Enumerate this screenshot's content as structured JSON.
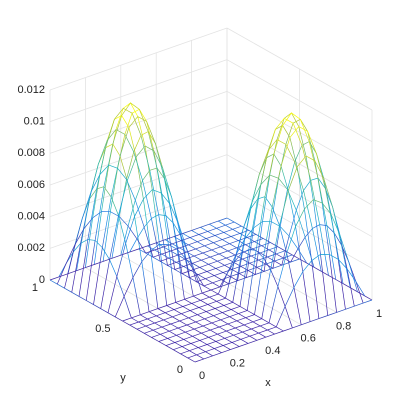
{
  "chart_data": {
    "type": "mesh",
    "xlabel": "x",
    "ylabel": "y",
    "x": [
      0,
      0.05,
      0.1,
      0.15,
      0.2,
      0.25,
      0.3,
      0.35,
      0.4,
      0.45,
      0.5,
      0.55,
      0.6,
      0.65,
      0.7,
      0.75,
      0.8,
      0.85,
      0.9,
      0.95,
      1
    ],
    "y": [
      0,
      0.05,
      0.1,
      0.15,
      0.2,
      0.25,
      0.3,
      0.35,
      0.4,
      0.45,
      0.5,
      0.55,
      0.6,
      0.65,
      0.7,
      0.75,
      0.8,
      0.85,
      0.9,
      0.95,
      1
    ],
    "z": [
      [
        0,
        0,
        0,
        0,
        0,
        0,
        0,
        0,
        0,
        0,
        0,
        0,
        0,
        0,
        0,
        0,
        0,
        0,
        0,
        0,
        0
      ],
      [
        0,
        0,
        0,
        0,
        0,
        0,
        0,
        0,
        0,
        0,
        0,
        0.0011,
        0.0021,
        0.0029,
        0.0034,
        0.0036,
        0.0034,
        0.0029,
        0.0021,
        0.0011,
        0
      ],
      [
        0,
        0,
        0,
        0,
        0,
        0,
        0,
        0,
        0,
        0,
        0,
        0.0021,
        0.004,
        0.0055,
        0.0064,
        0.0068,
        0.0064,
        0.0055,
        0.004,
        0.0021,
        0
      ],
      [
        0,
        0,
        0,
        0,
        0,
        0,
        0,
        0,
        0,
        0,
        0,
        0.0029,
        0.0055,
        0.0075,
        0.0088,
        0.0093,
        0.0088,
        0.0075,
        0.0055,
        0.0029,
        0
      ],
      [
        0,
        0,
        0,
        0,
        0,
        0,
        0,
        0,
        0,
        0,
        0,
        0.0034,
        0.0064,
        0.0088,
        0.0104,
        0.0109,
        0.0104,
        0.0088,
        0.0064,
        0.0034,
        0
      ],
      [
        0,
        0,
        0,
        0,
        0,
        0,
        0,
        0,
        0,
        0,
        0,
        0.0036,
        0.0068,
        0.0093,
        0.0109,
        0.0115,
        0.0109,
        0.0093,
        0.0068,
        0.0036,
        0
      ],
      [
        0,
        0,
        0,
        0,
        0,
        0,
        0,
        0,
        0,
        0,
        0,
        0.0034,
        0.0064,
        0.0088,
        0.0104,
        0.0109,
        0.0104,
        0.0088,
        0.0064,
        0.0034,
        0
      ],
      [
        0,
        0,
        0,
        0,
        0,
        0,
        0,
        0,
        0,
        0,
        0,
        0.0029,
        0.0055,
        0.0075,
        0.0088,
        0.0093,
        0.0088,
        0.0075,
        0.0055,
        0.0029,
        0
      ],
      [
        0,
        0,
        0,
        0,
        0,
        0,
        0,
        0,
        0,
        0,
        0,
        0.0021,
        0.004,
        0.0055,
        0.0064,
        0.0068,
        0.0064,
        0.0055,
        0.004,
        0.0021,
        0
      ],
      [
        0,
        0,
        0,
        0,
        0,
        0,
        0,
        0,
        0,
        0,
        0,
        0.0011,
        0.0021,
        0.0029,
        0.0034,
        0.0036,
        0.0034,
        0.0029,
        0.0021,
        0.0011,
        0
      ],
      [
        0,
        0,
        0,
        0,
        0,
        0,
        0,
        0,
        0,
        0,
        0,
        0,
        0,
        0,
        0,
        0,
        0,
        0,
        0,
        0,
        0
      ],
      [
        0,
        0.0011,
        0.0021,
        0.0029,
        0.0034,
        0.0036,
        0.0034,
        0.0029,
        0.0021,
        0.0011,
        0,
        0,
        0,
        0,
        0,
        0,
        0,
        0,
        0,
        0,
        0
      ],
      [
        0,
        0.0021,
        0.004,
        0.0055,
        0.0064,
        0.0068,
        0.0064,
        0.0055,
        0.004,
        0.0021,
        0,
        0,
        0,
        0,
        0,
        0,
        0,
        0,
        0,
        0,
        0
      ],
      [
        0,
        0.0029,
        0.0055,
        0.0075,
        0.0088,
        0.0093,
        0.0088,
        0.0075,
        0.0055,
        0.0029,
        0,
        0,
        0,
        0,
        0,
        0,
        0,
        0,
        0,
        0,
        0
      ],
      [
        0,
        0.0034,
        0.0064,
        0.0088,
        0.0104,
        0.0109,
        0.0104,
        0.0088,
        0.0064,
        0.0034,
        0,
        0,
        0,
        0,
        0,
        0,
        0,
        0,
        0,
        0,
        0
      ],
      [
        0,
        0.0036,
        0.0068,
        0.0093,
        0.0109,
        0.0115,
        0.0109,
        0.0093,
        0.0068,
        0.0036,
        0,
        0,
        0,
        0,
        0,
        0,
        0,
        0,
        0,
        0,
        0
      ],
      [
        0,
        0.0034,
        0.0064,
        0.0088,
        0.0104,
        0.0109,
        0.0104,
        0.0088,
        0.0064,
        0.0034,
        0,
        0,
        0,
        0,
        0,
        0,
        0,
        0,
        0,
        0,
        0
      ],
      [
        0,
        0.0029,
        0.0055,
        0.0075,
        0.0088,
        0.0093,
        0.0088,
        0.0075,
        0.0055,
        0.0029,
        0,
        0,
        0,
        0,
        0,
        0,
        0,
        0,
        0,
        0,
        0
      ],
      [
        0,
        0.0021,
        0.004,
        0.0055,
        0.0064,
        0.0068,
        0.0064,
        0.0055,
        0.004,
        0.0021,
        0,
        0,
        0,
        0,
        0,
        0,
        0,
        0,
        0,
        0,
        0
      ],
      [
        0,
        0.0011,
        0.0021,
        0.0029,
        0.0034,
        0.0036,
        0.0034,
        0.0029,
        0.0021,
        0.0011,
        0,
        0,
        0,
        0,
        0,
        0,
        0,
        0,
        0,
        0,
        0
      ],
      [
        0,
        0,
        0,
        0,
        0,
        0,
        0,
        0,
        0,
        0,
        0,
        0,
        0,
        0,
        0,
        0,
        0,
        0,
        0,
        0,
        0
      ]
    ],
    "xlim": [
      0,
      1
    ],
    "xticks": [
      0,
      0.2,
      0.4,
      0.6,
      0.8,
      1
    ],
    "ylim": [
      0,
      1
    ],
    "yticks": [
      0,
      0.5,
      1
    ],
    "zlim": [
      0,
      0.012
    ],
    "zticks": [
      0,
      0.002,
      0.004,
      0.006,
      0.008,
      0.01,
      0.012
    ],
    "grid": true,
    "colormap": [
      "#3e26a8",
      "#1c86e8",
      "#1fb8bf",
      "#a4be3a",
      "#f9fb0e"
    ]
  }
}
